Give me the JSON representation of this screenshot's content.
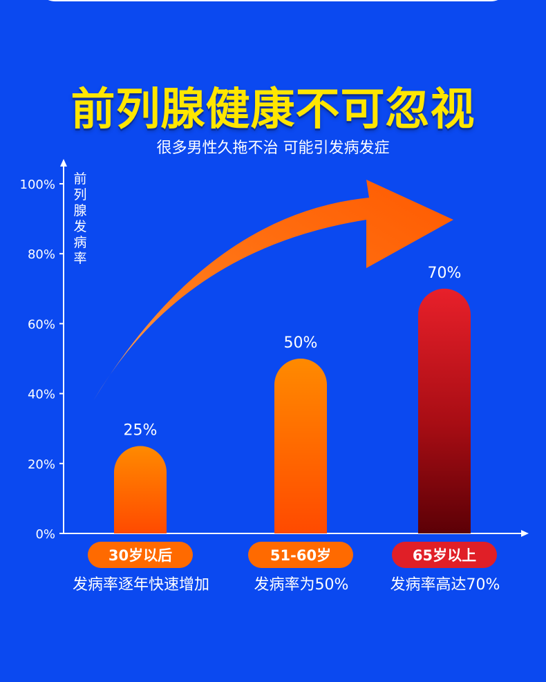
{
  "header": {
    "title": "前列腺健康不可忽视",
    "subtitle": "很多男性久拖不治 可能引发病发症"
  },
  "chart_data": {
    "type": "bar",
    "title": "前列腺健康不可忽视",
    "subtitle": "很多男性久拖不治 可能引发病发症",
    "ylabel": "前列腺发病率",
    "xlabel": "",
    "ylim": [
      0,
      100
    ],
    "y_ticks": [
      "0%",
      "20%",
      "40%",
      "60%",
      "80%",
      "100%"
    ],
    "categories": [
      "30岁以后",
      "51-60岁",
      "65岁以上"
    ],
    "values": [
      25,
      50,
      70
    ],
    "data_labels": [
      "25%",
      "50%",
      "70%"
    ],
    "descriptions": [
      "发病率逐年快速增加",
      "发病率为50%",
      "发病率高达70%"
    ],
    "grid": false,
    "legend": "none"
  },
  "colors": {
    "background": "#0b49f0",
    "title": "#ffe600",
    "bar_orange_top": "#ff8a00",
    "bar_orange_bottom": "#ff4a00",
    "bar_red_top": "#e8202a",
    "bar_red_bottom": "#5c0006",
    "pill_orange": "#ff6a00",
    "pill_red": "#e01f27",
    "arrow": "#ff6a00"
  },
  "icons": [
    "trend-arrow-icon"
  ]
}
